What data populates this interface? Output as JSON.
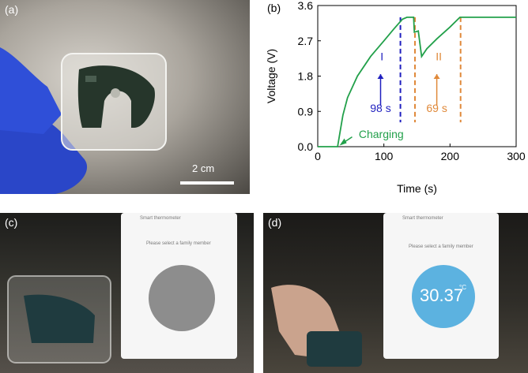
{
  "panels": {
    "a": {
      "label": "(a)",
      "scale_bar": "2 cm"
    },
    "b": {
      "label": "(b)"
    },
    "c": {
      "label": "(c)",
      "phone": {
        "app_title": "Smart thermometer",
        "prompt": "Please select a family member"
      }
    },
    "d": {
      "label": "(d)",
      "phone": {
        "app_title": "Smart thermometer",
        "prompt": "Please select a family member",
        "temperature": "30.37",
        "unit": "°C"
      }
    }
  },
  "colors": {
    "charging_curve": "#22a04a",
    "marker_I": "#1f1fbf",
    "marker_II": "#e0893a",
    "dial_idle": "#8d8d8d",
    "dial_active": "#5cb2e0"
  },
  "chart_data": {
    "type": "line",
    "xlabel": "Time (s)",
    "ylabel": "Voltage (V)",
    "xlim": [
      0,
      300
    ],
    "ylim": [
      0,
      3.6
    ],
    "xticks": [
      "0",
      "100",
      "200",
      "300"
    ],
    "yticks": [
      "0.0",
      "0.9",
      "1.8",
      "2.7",
      "3.6"
    ],
    "grid": false,
    "series": [
      {
        "points": [
          [
            0,
            0.0
          ],
          [
            30,
            0.0
          ],
          [
            33,
            0.3
          ],
          [
            38,
            0.8
          ],
          [
            45,
            1.25
          ],
          [
            60,
            1.8
          ],
          [
            80,
            2.3
          ],
          [
            100,
            2.7
          ],
          [
            115,
            3.0
          ],
          [
            128,
            3.25
          ],
          [
            135,
            3.3
          ],
          [
            145,
            3.3
          ],
          [
            146,
            2.92
          ],
          [
            152,
            2.95
          ],
          [
            157,
            2.3
          ],
          [
            165,
            2.5
          ],
          [
            180,
            2.75
          ],
          [
            200,
            3.05
          ],
          [
            215,
            3.3
          ],
          [
            300,
            3.3
          ]
        ]
      }
    ],
    "markers": [
      {
        "x": 125,
        "color_key": "marker_I"
      },
      {
        "x": 147,
        "color_key": "marker_II"
      },
      {
        "x": 216,
        "color_key": "marker_II"
      }
    ],
    "annotations": [
      {
        "text": "I",
        "color_key": "marker_I",
        "x": 97,
        "y": 2.2
      },
      {
        "text": "98 s",
        "color_key": "marker_I",
        "x": 95,
        "y": 0.88
      },
      {
        "text": "II",
        "color_key": "marker_II",
        "x": 183,
        "y": 2.2
      },
      {
        "text": "69 s",
        "color_key": "marker_II",
        "x": 180,
        "y": 0.88
      },
      {
        "text": "Charging",
        "color_key": "charging_curve",
        "x": 62,
        "y": 0.22
      }
    ]
  }
}
